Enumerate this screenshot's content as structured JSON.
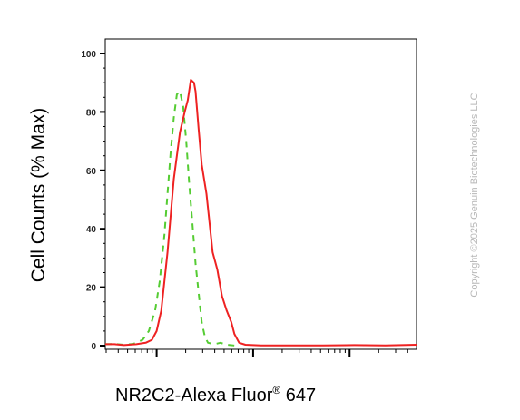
{
  "chart_data": {
    "type": "line",
    "title": "",
    "xlabel_main": "NR2C2-Alexa Fluor",
    "xlabel_sup": "®",
    "xlabel_tail": " 647",
    "ylabel": "Cell Counts (% Max)",
    "x_scale": "log",
    "ylim": [
      0,
      100
    ],
    "yticks": [
      0,
      20,
      40,
      60,
      80,
      100
    ],
    "ytick_labels": [
      "0",
      "20",
      "40",
      "60",
      "80",
      "100"
    ],
    "grid": false,
    "legend": "none",
    "series": [
      {
        "color": "#55cc33",
        "style": "dashed",
        "points": [
          [
            0,
            0.5
          ],
          [
            0.03,
            0.6
          ],
          [
            0.06,
            0.3
          ],
          [
            0.09,
            0.6
          ],
          [
            0.12,
            2
          ],
          [
            0.14,
            5
          ],
          [
            0.16,
            12
          ],
          [
            0.175,
            22
          ],
          [
            0.19,
            38
          ],
          [
            0.2,
            52
          ],
          [
            0.21,
            66
          ],
          [
            0.22,
            78
          ],
          [
            0.23,
            86
          ],
          [
            0.24,
            87
          ],
          [
            0.25,
            82
          ],
          [
            0.26,
            70
          ],
          [
            0.27,
            55
          ],
          [
            0.28,
            42
          ],
          [
            0.29,
            28
          ],
          [
            0.3,
            18
          ],
          [
            0.31,
            8
          ],
          [
            0.32,
            3
          ],
          [
            0.33,
            1
          ],
          [
            0.35,
            0.5
          ],
          [
            0.37,
            1
          ],
          [
            0.39,
            0.3
          ],
          [
            0.42,
            0
          ]
        ]
      },
      {
        "color": "#ee2222",
        "style": "solid",
        "points": [
          [
            0,
            0.5
          ],
          [
            0.03,
            0.5
          ],
          [
            0.06,
            0.2
          ],
          [
            0.1,
            0.5
          ],
          [
            0.13,
            1
          ],
          [
            0.15,
            2
          ],
          [
            0.165,
            5
          ],
          [
            0.18,
            12
          ],
          [
            0.2,
            32
          ],
          [
            0.22,
            57
          ],
          [
            0.24,
            73
          ],
          [
            0.255,
            80
          ],
          [
            0.265,
            84
          ],
          [
            0.275,
            91
          ],
          [
            0.285,
            90
          ],
          [
            0.29,
            87
          ],
          [
            0.3,
            74
          ],
          [
            0.31,
            62
          ],
          [
            0.325,
            52
          ],
          [
            0.335,
            42
          ],
          [
            0.345,
            32
          ],
          [
            0.36,
            26
          ],
          [
            0.375,
            17
          ],
          [
            0.39,
            12
          ],
          [
            0.405,
            8
          ],
          [
            0.415,
            4
          ],
          [
            0.43,
            1
          ],
          [
            0.45,
            0.3
          ],
          [
            0.5,
            0.1
          ],
          [
            0.6,
            0.1
          ],
          [
            0.7,
            0.1
          ],
          [
            0.8,
            0.2
          ],
          [
            0.9,
            0.1
          ],
          [
            1.0,
            0.3
          ]
        ]
      }
    ]
  },
  "copyright": "Copyright ©2025 Genuin Biotechnologies LLC"
}
